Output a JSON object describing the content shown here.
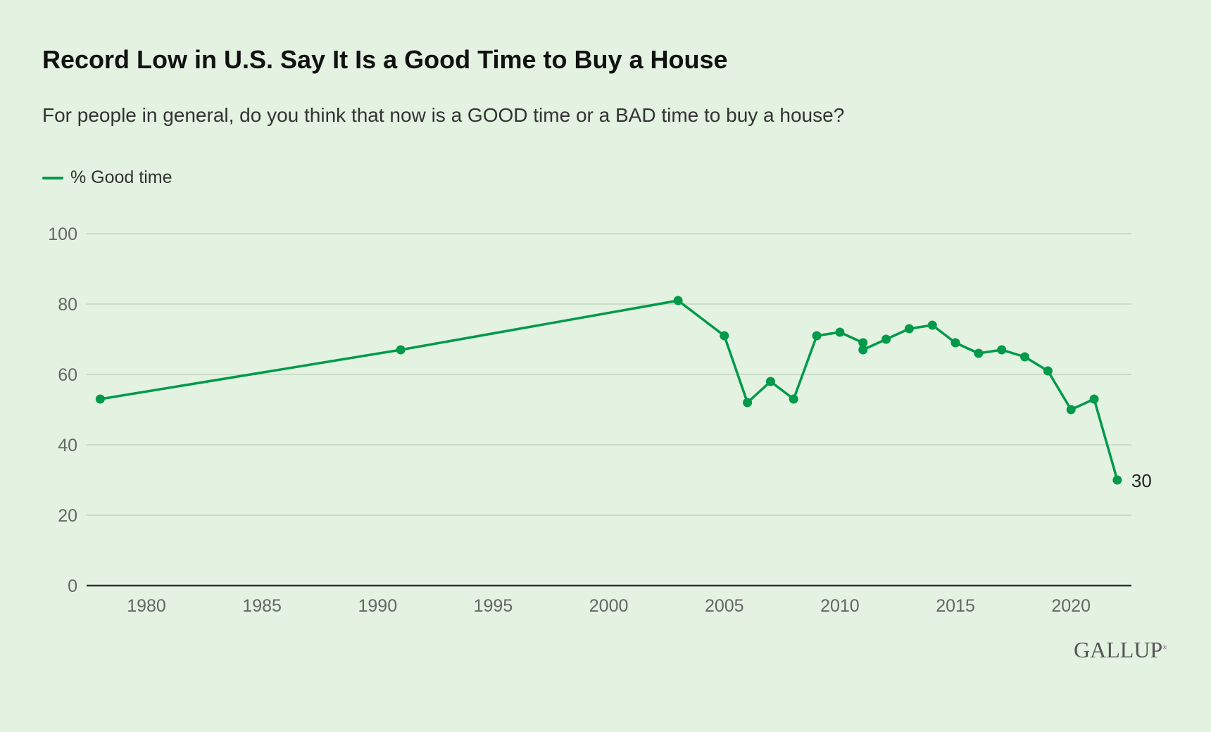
{
  "chart_data": {
    "type": "line",
    "title": "Record Low in U.S. Say It Is a Good Time to Buy a House",
    "subtitle": "For people in general, do you think that now is a GOOD time or a BAD time to buy a house?",
    "xlabel": "",
    "ylabel": "",
    "xlim": [
      1977.5,
      2022.7
    ],
    "ylim": [
      0,
      100
    ],
    "xticks": [
      "1980",
      "1985",
      "1990",
      "1995",
      "2000",
      "2005",
      "2010",
      "2015",
      "2020"
    ],
    "yticks": [
      "0",
      "20",
      "40",
      "60",
      "80",
      "100"
    ],
    "grid": "horizontal",
    "legend_position": "top-left",
    "series": [
      {
        "name": "% Good time",
        "color": "#009a4a",
        "x": [
          1978,
          1991,
          2003,
          2005,
          2006,
          2007,
          2008,
          2009,
          2010,
          2011,
          2011,
          2012,
          2013,
          2014,
          2015,
          2016,
          2017,
          2018,
          2019,
          2020,
          2021,
          2022
        ],
        "values": [
          53,
          67,
          81,
          71,
          52,
          58,
          53,
          71,
          72,
          69,
          67,
          70,
          73,
          74,
          69,
          66,
          67,
          65,
          61,
          50,
          53,
          30
        ]
      }
    ],
    "annotations": [
      {
        "x": 2022,
        "y": 30,
        "text": "30"
      }
    ]
  },
  "logo": "GALLUP"
}
